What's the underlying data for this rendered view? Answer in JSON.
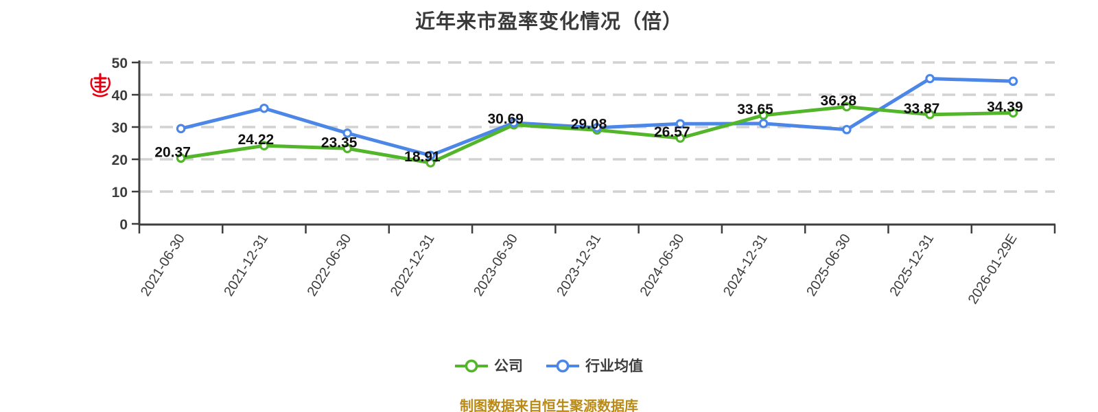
{
  "chart_data": {
    "type": "line",
    "title": "近年来市盈率变化情况（倍）",
    "xlabel": "",
    "ylabel": "",
    "categories": [
      "2021-06-30",
      "2021-12-31",
      "2022-06-30",
      "2022-12-31",
      "2023-06-30",
      "2023-12-31",
      "2024-06-30",
      "2024-12-31",
      "2025-06-30",
      "2025-12-31",
      "2026-01-29E"
    ],
    "series": [
      {
        "key": "company",
        "name": "公司",
        "color": "#53b62a",
        "marker": "circle-white-fill",
        "data_labels": true,
        "values": [
          20.37,
          24.22,
          23.35,
          18.91,
          30.69,
          29.08,
          26.57,
          33.65,
          36.28,
          33.87,
          34.39
        ]
      },
      {
        "key": "industry-average",
        "name": "行业均值",
        "color": "#4c87e8",
        "marker": "circle-white-fill",
        "data_labels": false,
        "values": [
          29.5,
          35.8,
          28.1,
          21.2,
          31.3,
          29.8,
          31.0,
          31.1,
          29.2,
          45.0,
          44.2
        ]
      }
    ],
    "ylim": [
      0,
      50
    ],
    "yticks": [
      0,
      10,
      20,
      30,
      40,
      50
    ],
    "grid": "horizontal-dashed",
    "grid_color": "#d2d2d2",
    "axis_color": "#3d3d3d",
    "tick_label_color": "#3d3d3d",
    "data_label_color": "#111111",
    "x_label_rotation_deg": -58,
    "legend_position": "bottom"
  },
  "watermark": {
    "icon": "red-seal-logo",
    "color": "#e60012"
  },
  "footer": {
    "source_note": "制图数据来自恒生聚源数据库",
    "color": "#bb8a14"
  }
}
